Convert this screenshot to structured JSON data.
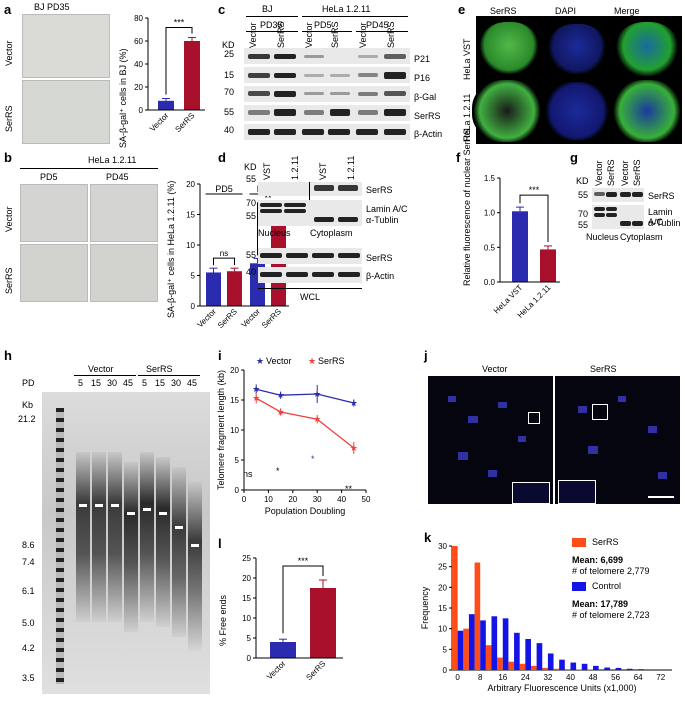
{
  "panels": {
    "a": {
      "label": "a",
      "header": "BJ   PD35",
      "row_labels": [
        "Vector",
        "SerRS"
      ],
      "chart": {
        "ylabel": "SA-β-gal⁺ cells in BJ (%)",
        "yticks": [
          "0",
          "20",
          "40",
          "60",
          "80"
        ],
        "sig": "***"
      }
    },
    "b": {
      "label": "b",
      "header": "HeLa 1.2.11",
      "cols": [
        "PD5",
        "PD45"
      ],
      "row_labels": [
        "Vector",
        "SerRS"
      ],
      "chart": {
        "ylabel": "SA-β-gal⁺ cells in HeLa 1.2.11 (%)",
        "yticks": [
          "0",
          "5",
          "10",
          "15",
          "20"
        ],
        "groups": [
          "PD5",
          "PD45"
        ],
        "sig_ns": "ns",
        "sig": "**"
      }
    },
    "c": {
      "label": "c",
      "groups": [
        "BJ",
        "HeLa 1.2.11"
      ],
      "subgroups": [
        "PD35",
        "PD5",
        "PD45"
      ],
      "lanes": [
        "Vector",
        "SerRS",
        "Vector",
        "SerRS",
        "Vector",
        "SerRS"
      ],
      "kd_label": "KD",
      "kd": [
        "25",
        "15",
        "70",
        "55",
        "40"
      ],
      "bands": [
        "P21",
        "P16",
        "β-Gal",
        "SerRS",
        "β-Actin"
      ]
    },
    "d": {
      "label": "d",
      "lanes": [
        "VST",
        "1.2.11",
        "VST",
        "1.2.11"
      ],
      "kd_label": "KD",
      "kd_top": [
        "55",
        "70",
        "55"
      ],
      "bands_top": [
        "SerRS",
        "Lamin A/C",
        "α-Tublin"
      ],
      "fractions": [
        "Nucleus",
        "Cytoplasm"
      ],
      "kd_bottom": [
        "55",
        "40"
      ],
      "bands_bottom": [
        "SerRS",
        "β-Actin"
      ],
      "wcl": "WCL"
    },
    "e": {
      "label": "e",
      "cols": [
        "SerRS",
        "DAPI",
        "Merge"
      ],
      "rows": [
        "HeLa VST",
        "HeLa 1.2.11"
      ]
    },
    "f": {
      "label": "f",
      "chart": {
        "ylabel": "Relative fluorescence of nuclear SerRS",
        "yticks": [
          "0.0",
          "0.5",
          "1.0",
          "1.5"
        ],
        "sig": "***"
      }
    },
    "g": {
      "label": "g",
      "lanes": [
        "Vector",
        "SerRS",
        "Vector",
        "SerRS"
      ],
      "kd_label": "KD",
      "kd": [
        "55",
        "70",
        "55"
      ],
      "bands": [
        "SerRS",
        "Lamin A/C",
        "α-Tublin"
      ],
      "fractions": [
        "Nucleus",
        "Cytoplasm"
      ]
    },
    "h": {
      "label": "h",
      "pd_label": "PD",
      "groups": [
        "Vector",
        "SerRS"
      ],
      "lanes": [
        "5",
        "15",
        "30",
        "45",
        "5",
        "15",
        "30",
        "45"
      ],
      "kb_label": "Kb",
      "kb": [
        "21.2",
        "8.6",
        "7.4",
        "6.1",
        "5.0",
        "4.2",
        "3.5"
      ]
    },
    "i": {
      "label": "i",
      "annotations": [
        "ns",
        "*",
        "*",
        "**"
      ]
    },
    "j": {
      "label": "j",
      "cols": [
        "Vector",
        "SerRS"
      ]
    },
    "k": {
      "label": "k",
      "legend": [
        {
          "name": "SerRS",
          "mean": "Mean: 6,699",
          "count": "# of telomere 2,779"
        },
        {
          "name": "Control",
          "mean": "Mean: 17,789",
          "count": "# of telomere 2,723"
        }
      ]
    },
    "l": {
      "label": "l",
      "chart": {
        "ylabel": "% Free ends",
        "yticks": [
          "0",
          "5",
          "10",
          "15",
          "20",
          "25"
        ],
        "sig": "***"
      }
    }
  },
  "colors": {
    "vector": "#2b2bb0",
    "serrs": "#a8102c",
    "k_serrs": "#ff4d1a",
    "k_control": "#1414e6",
    "i_serrs": "#f04040"
  },
  "chart_data": [
    {
      "type": "bar",
      "panel": "a",
      "categories": [
        "Vector",
        "SerRS"
      ],
      "values": [
        8,
        60
      ],
      "errors": [
        2,
        3
      ],
      "ylabel": "SA-β-gal⁺ cells in BJ (%)",
      "ylim": [
        0,
        80
      ]
    },
    {
      "type": "bar",
      "panel": "b",
      "categories": [
        "Vector",
        "SerRS",
        "Vector",
        "SerRS"
      ],
      "groups": [
        "PD5",
        "PD45"
      ],
      "values": [
        5.5,
        5.7,
        7,
        14
      ],
      "errors": [
        0.7,
        0.5,
        0.8,
        1.6
      ],
      "ylabel": "SA-β-gal⁺ cells in HeLa 1.2.11 (%)",
      "ylim": [
        0,
        20
      ]
    },
    {
      "type": "bar",
      "panel": "f",
      "categories": [
        "HeLa VST",
        "HeLa 1.2.11"
      ],
      "values": [
        1.02,
        0.47
      ],
      "errors": [
        0.06,
        0.05
      ],
      "ylabel": "Relative fluorescence of nuclear SerRS",
      "ylim": [
        0,
        1.5
      ]
    },
    {
      "type": "line",
      "panel": "i",
      "x": [
        5,
        15,
        30,
        45
      ],
      "series": [
        {
          "name": "Vector",
          "values": [
            16.8,
            15.8,
            16.0,
            14.5
          ],
          "errors": [
            0.8,
            0.6,
            1.5,
            0.6
          ]
        },
        {
          "name": "SerRS",
          "values": [
            15.3,
            13.0,
            11.8,
            7.0
          ],
          "errors": [
            0.9,
            0.6,
            0.7,
            1.0
          ]
        }
      ],
      "xlabel": "Population Doubling",
      "ylabel": "Telomere fragment length (kb)",
      "xlim": [
        0,
        50
      ],
      "ylim": [
        0,
        20
      ],
      "xticks": [
        0,
        10,
        20,
        30,
        40,
        50
      ],
      "yticks": [
        0,
        5,
        10,
        15,
        20
      ]
    },
    {
      "type": "bar",
      "panel": "k",
      "x": [
        0,
        4,
        8,
        12,
        16,
        20,
        24,
        28,
        32,
        36,
        40,
        44,
        48,
        52,
        56,
        60,
        64
      ],
      "series": [
        {
          "name": "SerRS",
          "values": [
            30,
            10,
            26,
            6,
            3,
            2,
            1.5,
            1,
            0.5,
            0.3,
            0.2,
            0.1,
            0.1,
            0,
            0,
            0,
            0
          ]
        },
        {
          "name": "Control",
          "values": [
            9.5,
            13.5,
            12,
            13,
            12.5,
            9,
            7.5,
            6.5,
            4,
            2.5,
            1.8,
            1.5,
            1,
            0.6,
            0.5,
            0.3,
            0.2
          ]
        }
      ],
      "xlabel": "Arbitrary Fluorescence Units (x1,000)",
      "ylabel": "Frequency",
      "ylim": [
        0,
        30
      ],
      "yticks": [
        0,
        5,
        10,
        15,
        20,
        25,
        30
      ],
      "xticks": [
        0,
        8,
        16,
        24,
        32,
        40,
        48,
        56,
        64,
        72
      ]
    },
    {
      "type": "bar",
      "panel": "l",
      "categories": [
        "Vector",
        "SerRS"
      ],
      "values": [
        4,
        17.5
      ],
      "errors": [
        0.7,
        2
      ],
      "ylabel": "% Free ends",
      "ylim": [
        0,
        25
      ]
    }
  ]
}
